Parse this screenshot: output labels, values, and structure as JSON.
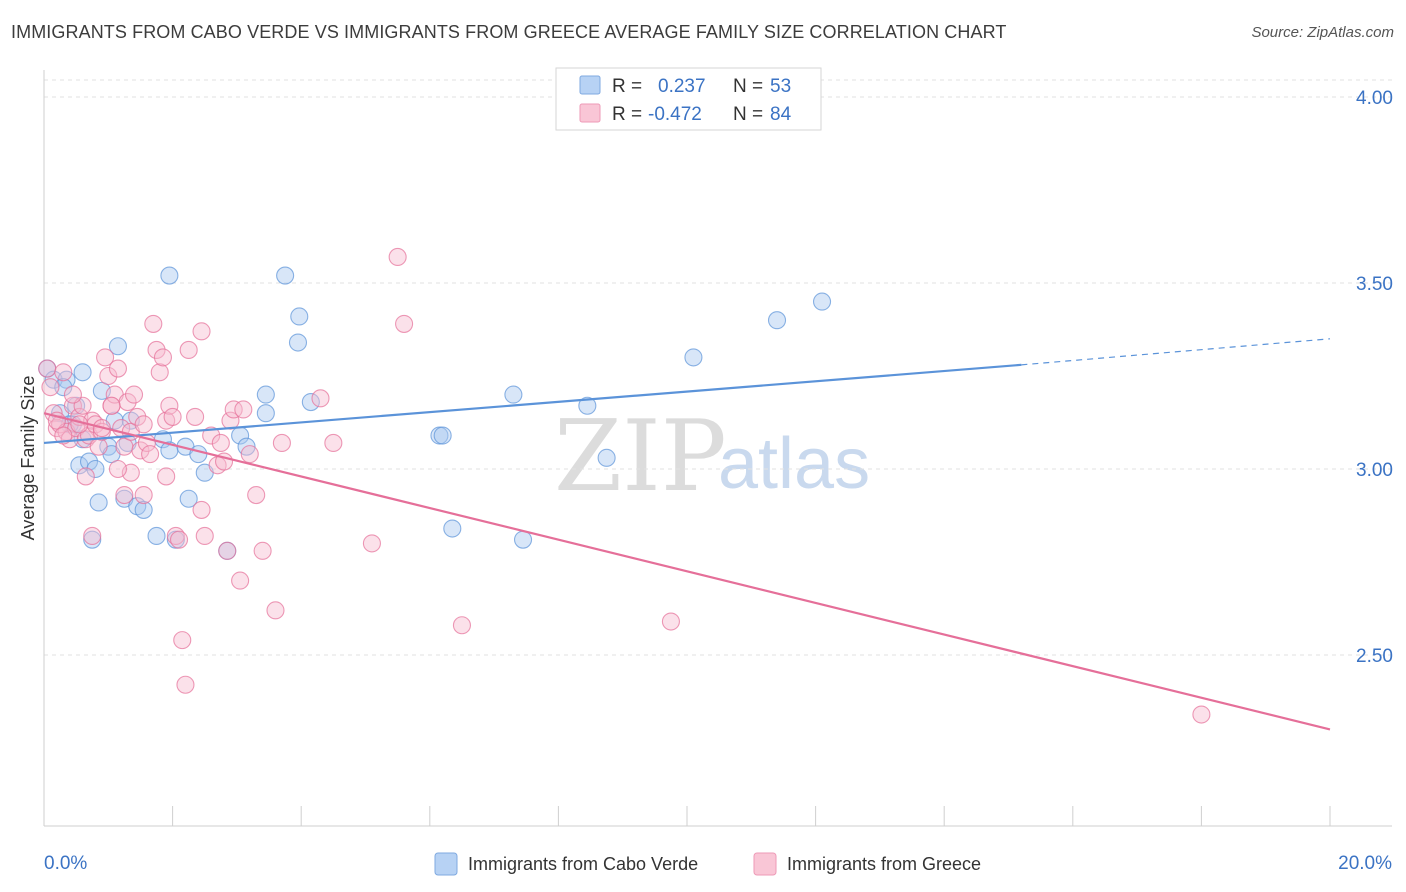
{
  "title": "IMMIGRANTS FROM CABO VERDE VS IMMIGRANTS FROM GREECE AVERAGE FAMILY SIZE CORRELATION CHART",
  "source": "Source: ZipAtlas.com",
  "watermark": {
    "zip": "ZIP",
    "atlas": "atlas"
  },
  "legend": {
    "rows": [
      {
        "r_label": "R =",
        "r_value": "0.237",
        "n_label": "N =",
        "n_value": "53",
        "color": "#9cc1ee"
      },
      {
        "r_label": "R =",
        "r_value": "-0.472",
        "n_label": "N =",
        "n_value": "84",
        "color": "#f5b3c8"
      }
    ]
  },
  "bottom_legend": [
    {
      "label": "Immigrants from Cabo Verde",
      "color": "#9cc1ee"
    },
    {
      "label": "Immigrants from Greece",
      "color": "#f5b3c8"
    }
  ],
  "chart_data": {
    "type": "scatter",
    "title": "IMMIGRANTS FROM CABO VERDE VS IMMIGRANTS FROM GREECE AVERAGE FAMILY SIZE CORRELATION CHART",
    "xlabel": "",
    "ylabel": "Average Family Size",
    "xlim": [
      0,
      20
    ],
    "ylim": [
      2.05,
      4.15
    ],
    "x_tick_labels": [
      "0.0%",
      "20.0%"
    ],
    "y_ticks": [
      2.5,
      3.0,
      3.5,
      4.0
    ],
    "y_tick_labels": [
      "2.50",
      "3.00",
      "3.50",
      "4.00"
    ],
    "grid": true,
    "legend_position": "top-center",
    "series": [
      {
        "name": "Immigrants from Cabo Verde",
        "color": "#5b93d9",
        "fill": "#a8c8f0",
        "trend": {
          "x0": 0,
          "y0": 3.07,
          "x1": 15.2,
          "y1": 3.28,
          "dash_to_x": 20,
          "dash_to_y": 3.35
        },
        "points": [
          [
            0.05,
            3.27
          ],
          [
            0.15,
            3.24
          ],
          [
            0.25,
            3.15
          ],
          [
            0.35,
            3.24
          ],
          [
            0.45,
            3.12
          ],
          [
            0.6,
            3.26
          ],
          [
            0.6,
            3.08
          ],
          [
            0.55,
            3.01
          ],
          [
            0.7,
            3.02
          ],
          [
            0.8,
            3.0
          ],
          [
            0.85,
            2.91
          ],
          [
            0.75,
            2.81
          ],
          [
            1.0,
            3.06
          ],
          [
            1.1,
            3.13
          ],
          [
            1.15,
            3.33
          ],
          [
            0.9,
            3.21
          ],
          [
            1.3,
            3.07
          ],
          [
            1.35,
            3.13
          ],
          [
            1.25,
            2.92
          ],
          [
            1.45,
            2.9
          ],
          [
            1.55,
            2.89
          ],
          [
            1.75,
            2.82
          ],
          [
            1.85,
            3.08
          ],
          [
            1.95,
            3.05
          ],
          [
            2.05,
            2.81
          ],
          [
            2.2,
            3.06
          ],
          [
            2.25,
            2.92
          ],
          [
            2.4,
            3.04
          ],
          [
            2.5,
            2.99
          ],
          [
            2.85,
            2.78
          ],
          [
            3.05,
            3.09
          ],
          [
            3.15,
            3.06
          ],
          [
            3.45,
            3.2
          ],
          [
            3.45,
            3.15
          ],
          [
            3.75,
            3.52
          ],
          [
            3.95,
            3.34
          ],
          [
            3.97,
            3.41
          ],
          [
            4.15,
            3.18
          ],
          [
            6.15,
            3.09
          ],
          [
            6.2,
            3.09
          ],
          [
            6.35,
            2.84
          ],
          [
            7.3,
            3.2
          ],
          [
            7.45,
            2.81
          ],
          [
            8.45,
            3.17
          ],
          [
            8.75,
            3.03
          ],
          [
            10.1,
            3.3
          ],
          [
            11.4,
            3.4
          ],
          [
            12.1,
            3.45
          ],
          [
            1.95,
            3.52
          ],
          [
            0.3,
            3.22
          ],
          [
            0.5,
            3.17
          ],
          [
            0.4,
            3.12
          ],
          [
            1.05,
            3.04
          ]
        ]
      },
      {
        "name": "Immigrants from Greece",
        "color": "#e56f99",
        "fill": "#f7bcd0",
        "trend": {
          "x0": 0,
          "y0": 3.15,
          "x1": 20,
          "y1": 2.3
        },
        "points": [
          [
            0.05,
            3.27
          ],
          [
            0.1,
            3.22
          ],
          [
            0.15,
            3.15
          ],
          [
            0.2,
            3.11
          ],
          [
            0.25,
            3.12
          ],
          [
            0.3,
            3.26
          ],
          [
            0.35,
            3.1
          ],
          [
            0.4,
            3.08
          ],
          [
            0.45,
            3.17
          ],
          [
            0.5,
            3.11
          ],
          [
            0.55,
            3.14
          ],
          [
            0.6,
            3.17
          ],
          [
            0.65,
            3.08
          ],
          [
            0.7,
            3.09
          ],
          [
            0.75,
            3.13
          ],
          [
            0.8,
            3.12
          ],
          [
            0.85,
            3.06
          ],
          [
            0.9,
            3.1
          ],
          [
            0.95,
            3.3
          ],
          [
            1.0,
            3.25
          ],
          [
            1.05,
            3.17
          ],
          [
            1.1,
            3.2
          ],
          [
            1.15,
            3.27
          ],
          [
            1.2,
            3.11
          ],
          [
            1.25,
            3.06
          ],
          [
            1.3,
            3.18
          ],
          [
            1.35,
            3.1
          ],
          [
            1.4,
            3.2
          ],
          [
            1.45,
            3.14
          ],
          [
            1.5,
            3.05
          ],
          [
            1.55,
            3.12
          ],
          [
            1.6,
            3.07
          ],
          [
            1.65,
            3.04
          ],
          [
            1.7,
            3.39
          ],
          [
            1.75,
            3.32
          ],
          [
            1.8,
            3.26
          ],
          [
            1.85,
            3.3
          ],
          [
            1.9,
            3.13
          ],
          [
            1.95,
            3.17
          ],
          [
            2.0,
            3.14
          ],
          [
            2.05,
            2.82
          ],
          [
            2.1,
            2.81
          ],
          [
            2.2,
            2.42
          ],
          [
            2.25,
            3.32
          ],
          [
            2.35,
            3.14
          ],
          [
            2.45,
            3.37
          ],
          [
            2.5,
            2.82
          ],
          [
            2.6,
            3.09
          ],
          [
            2.7,
            3.01
          ],
          [
            2.8,
            3.02
          ],
          [
            2.9,
            3.13
          ],
          [
            2.95,
            3.16
          ],
          [
            3.05,
            2.7
          ],
          [
            3.1,
            3.16
          ],
          [
            3.2,
            3.04
          ],
          [
            3.3,
            2.93
          ],
          [
            3.4,
            2.78
          ],
          [
            3.6,
            2.62
          ],
          [
            3.7,
            3.07
          ],
          [
            4.3,
            3.19
          ],
          [
            4.5,
            3.07
          ],
          [
            5.1,
            2.8
          ],
          [
            5.5,
            3.57
          ],
          [
            5.6,
            3.39
          ],
          [
            6.5,
            2.58
          ],
          [
            9.75,
            2.59
          ],
          [
            18.0,
            2.34
          ],
          [
            2.15,
            2.54
          ],
          [
            1.25,
            2.93
          ],
          [
            1.35,
            2.99
          ],
          [
            1.9,
            2.98
          ],
          [
            0.75,
            2.82
          ],
          [
            0.65,
            2.98
          ],
          [
            1.05,
            3.17
          ],
          [
            2.75,
            3.07
          ],
          [
            0.45,
            3.2
          ],
          [
            0.2,
            3.13
          ],
          [
            0.55,
            3.12
          ],
          [
            1.55,
            2.93
          ],
          [
            2.45,
            2.89
          ],
          [
            1.15,
            3.0
          ],
          [
            0.9,
            3.11
          ],
          [
            0.3,
            3.09
          ],
          [
            2.85,
            2.78
          ]
        ]
      }
    ]
  }
}
